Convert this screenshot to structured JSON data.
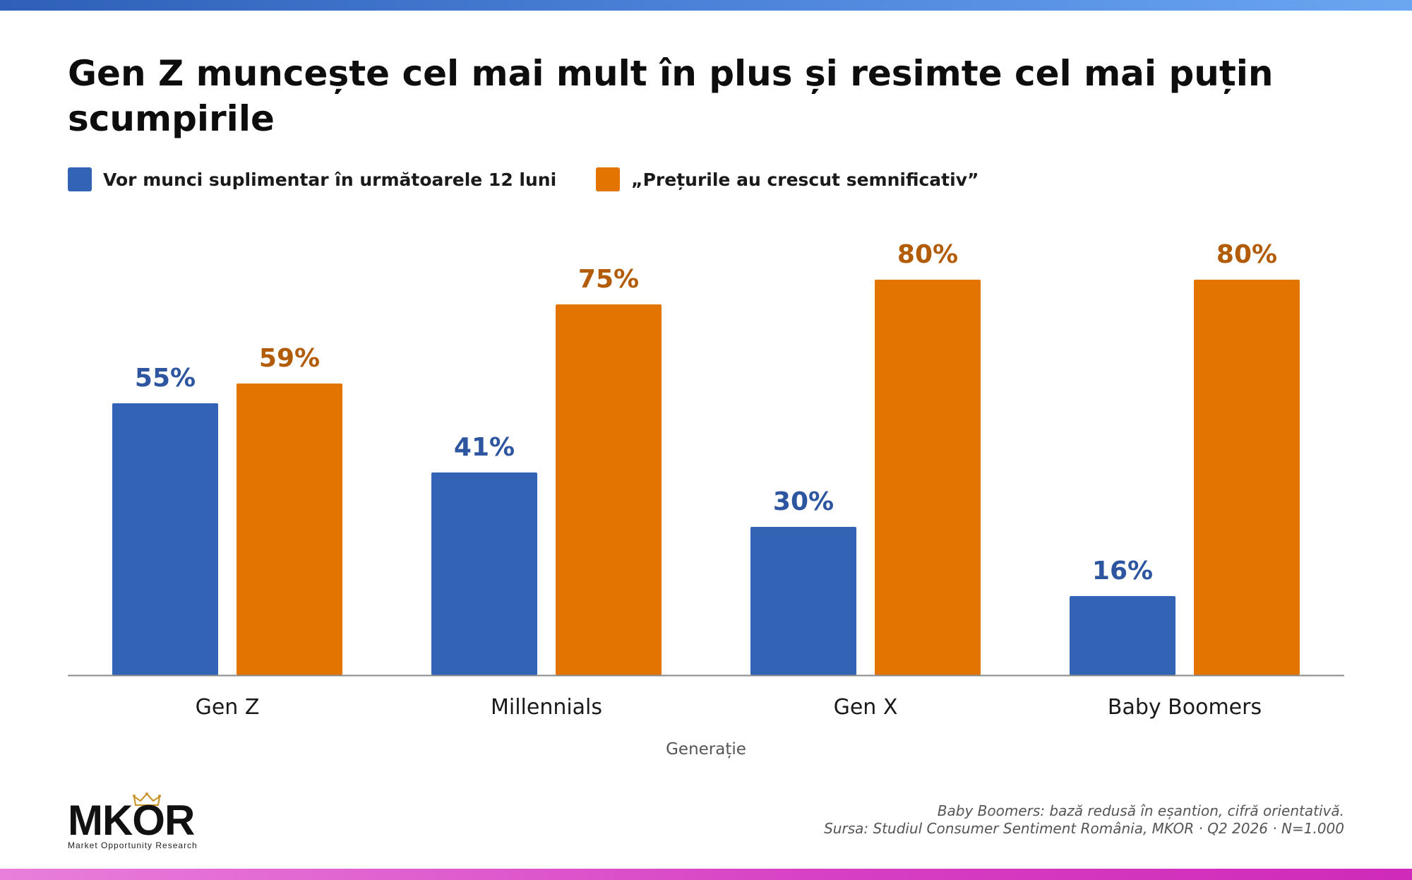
{
  "title": "Gen Z muncește cel mai mult în plus și resimte cel mai puțin scumpirile",
  "legend": [
    {
      "label": "Vor munci suplimentar în următoarele 12 luni",
      "color": "#3263b5"
    },
    {
      "label": "„Prețurile au crescut semnificativ”",
      "color": "#e37400"
    }
  ],
  "chart_data": {
    "type": "bar",
    "categories": [
      "Gen Z",
      "Millennials",
      "Gen X",
      "Baby Boomers"
    ],
    "series": [
      {
        "name": "Vor munci suplimentar în următoarele 12 luni",
        "values": [
          55,
          41,
          30,
          16
        ],
        "labels": [
          "55%",
          "41%",
          "30%",
          "16%"
        ],
        "color": "#3263b5",
        "label_color": "#2d55a0"
      },
      {
        "name": "„Prețurile au crescut semnificativ”",
        "values": [
          59,
          75,
          80,
          80
        ],
        "labels": [
          "59%",
          "75%",
          "80%",
          "80%"
        ],
        "color": "#e37400",
        "label_color": "#b35c07"
      }
    ],
    "xlabel": "Generație",
    "ylabel": "",
    "ylim": [
      0,
      100
    ],
    "grid": false,
    "legend_position": "top-left"
  },
  "logo": {
    "wordmark": "MKOR",
    "tagline": "Market Opportunity Research"
  },
  "footnotes": [
    "Baby Boomers: bază redusă în eșantion, cifră orientativă.",
    "Sursa: Studiul Consumer Sentiment România, MKOR · Q2 2026 · N=1.000"
  ]
}
